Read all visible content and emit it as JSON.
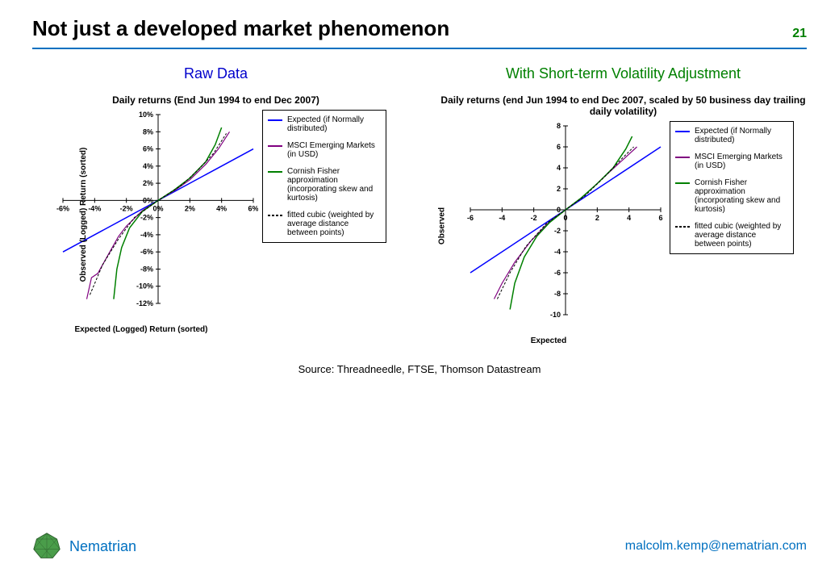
{
  "header": {
    "title": "Not just a developed market phenomenon",
    "page_number": "21",
    "rule_color": "#0070c0"
  },
  "panels": {
    "left": {
      "heading": "Raw Data",
      "heading_color": "#0000cc",
      "chart_title": "Daily returns (End Jun 1994 to end Dec 2007)",
      "ylabel": "Observed (Logged) Return (sorted)",
      "xlabel": "Expected (Logged) Return (sorted)",
      "chart": {
        "type": "line",
        "xlim": [
          -6,
          6
        ],
        "ylim": [
          -12,
          10
        ],
        "xtick_labels": [
          "-6%",
          "-4%",
          "-2%",
          "0%",
          "2%",
          "4%",
          "6%"
        ],
        "ytick_labels": [
          "-12%",
          "-10%",
          "-8%",
          "-6%",
          "-4%",
          "-2%",
          "0%",
          "2%",
          "4%",
          "6%",
          "8%",
          "10%"
        ],
        "background_color": "#ffffff",
        "series": [
          {
            "name": "expected",
            "color": "#0000ff",
            "width": 1.5,
            "dash": "none",
            "points": [
              [
                -6,
                -6
              ],
              [
                6,
                6
              ]
            ]
          },
          {
            "name": "msci",
            "color": "#800080",
            "width": 1.2,
            "dash": "none",
            "points": [
              [
                -4.5,
                -11.5
              ],
              [
                -4.2,
                -9.0
              ],
              [
                -3.8,
                -8.5
              ],
              [
                -3.2,
                -6.5
              ],
              [
                -2.5,
                -4.2
              ],
              [
                -2.0,
                -3.0
              ],
              [
                -1.0,
                -1.2
              ],
              [
                0,
                0
              ],
              [
                1.0,
                1.1
              ],
              [
                2.0,
                2.4
              ],
              [
                3.0,
                4.2
              ],
              [
                3.8,
                6.0
              ],
              [
                4.5,
                8.0
              ]
            ]
          },
          {
            "name": "cornish",
            "color": "#008000",
            "width": 1.5,
            "dash": "none",
            "points": [
              [
                -2.8,
                -11.5
              ],
              [
                -2.6,
                -8.0
              ],
              [
                -2.3,
                -5.5
              ],
              [
                -1.8,
                -3.2
              ],
              [
                -1.0,
                -1.3
              ],
              [
                0,
                0
              ],
              [
                1.0,
                1.2
              ],
              [
                2.0,
                2.6
              ],
              [
                3.0,
                4.5
              ],
              [
                3.6,
                6.5
              ],
              [
                4.0,
                8.5
              ]
            ]
          },
          {
            "name": "cubic",
            "color": "#000000",
            "width": 1,
            "dash": "3,2",
            "points": [
              [
                -4.3,
                -11.0
              ],
              [
                -3.5,
                -7.5
              ],
              [
                -2.5,
                -4.5
              ],
              [
                -1.5,
                -2.0
              ],
              [
                0,
                0
              ],
              [
                1.5,
                1.8
              ],
              [
                2.5,
                3.5
              ],
              [
                3.5,
                5.5
              ],
              [
                4.3,
                7.8
              ]
            ]
          }
        ]
      }
    },
    "right": {
      "heading": "With Short-term Volatility Adjustment",
      "heading_color": "#008000",
      "chart_title": "Daily returns (end Jun 1994 to end Dec 2007, scaled by 50 business day trailing daily volatility)",
      "ylabel": "Observed",
      "xlabel": "Expected",
      "chart": {
        "type": "line",
        "xlim": [
          -6,
          6
        ],
        "ylim": [
          -10,
          8
        ],
        "xtick_labels": [
          "-6",
          "-4",
          "-2",
          "0",
          "2",
          "4",
          "6"
        ],
        "ytick_labels": [
          "-10",
          "-8",
          "-6",
          "-4",
          "-2",
          "0",
          "2",
          "4",
          "6",
          "8"
        ],
        "background_color": "#ffffff",
        "series": [
          {
            "name": "expected",
            "color": "#0000ff",
            "width": 1.5,
            "dash": "none",
            "points": [
              [
                -6,
                -6
              ],
              [
                6,
                6
              ]
            ]
          },
          {
            "name": "msci",
            "color": "#800080",
            "width": 1.2,
            "dash": "none",
            "points": [
              [
                -4.5,
                -8.5
              ],
              [
                -4.0,
                -7.0
              ],
              [
                -3.2,
                -5.0
              ],
              [
                -2.2,
                -3.0
              ],
              [
                -1.0,
                -1.1
              ],
              [
                0,
                0
              ],
              [
                1.0,
                1.1
              ],
              [
                2.2,
                2.8
              ],
              [
                3.2,
                4.2
              ],
              [
                4.0,
                5.3
              ],
              [
                4.5,
                6.0
              ]
            ]
          },
          {
            "name": "cornish",
            "color": "#008000",
            "width": 1.5,
            "dash": "none",
            "points": [
              [
                -3.5,
                -9.5
              ],
              [
                -3.2,
                -7.0
              ],
              [
                -2.6,
                -4.5
              ],
              [
                -1.8,
                -2.5
              ],
              [
                -1.0,
                -1.2
              ],
              [
                0,
                0
              ],
              [
                1.0,
                1.15
              ],
              [
                2.0,
                2.5
              ],
              [
                3.0,
                4.0
              ],
              [
                3.8,
                5.8
              ],
              [
                4.2,
                7.0
              ]
            ]
          },
          {
            "name": "cubic",
            "color": "#000000",
            "width": 1,
            "dash": "3,2",
            "points": [
              [
                -4.3,
                -8.5
              ],
              [
                -3.5,
                -6.0
              ],
              [
                -2.5,
                -3.5
              ],
              [
                -1.2,
                -1.3
              ],
              [
                0,
                0
              ],
              [
                1.2,
                1.3
              ],
              [
                2.5,
                3.2
              ],
              [
                3.5,
                4.8
              ],
              [
                4.3,
                6.0
              ]
            ]
          }
        ]
      }
    }
  },
  "legend": {
    "items": [
      {
        "label": "Expected (if Normally distributed)",
        "color": "#0000ff",
        "dash": "none"
      },
      {
        "label": "MSCI Emerging Markets (in USD)",
        "color": "#800080",
        "dash": "none"
      },
      {
        "label": "Cornish Fisher approximation (incorporating skew and kurtosis)",
        "color": "#008000",
        "dash": "none"
      },
      {
        "label": "fitted cubic (weighted by average distance between points)",
        "color": "#000000",
        "dash": "3,2"
      }
    ]
  },
  "source": "Source: Threadneedle, FTSE, Thomson Datastream",
  "footer": {
    "brand": "Nematrian",
    "logo_colors": {
      "fill": "#4a9d4a",
      "stroke": "#2d5f2d"
    },
    "email": "malcolm.kemp@nematrian.com"
  },
  "typography": {
    "title_fontsize": 26,
    "heading_fontsize": 18,
    "chart_title_fontsize": 12,
    "axis_label_fontsize": 10,
    "tick_fontsize": 9,
    "legend_fontsize": 10,
    "source_fontsize": 13,
    "footer_fontsize": 16
  }
}
